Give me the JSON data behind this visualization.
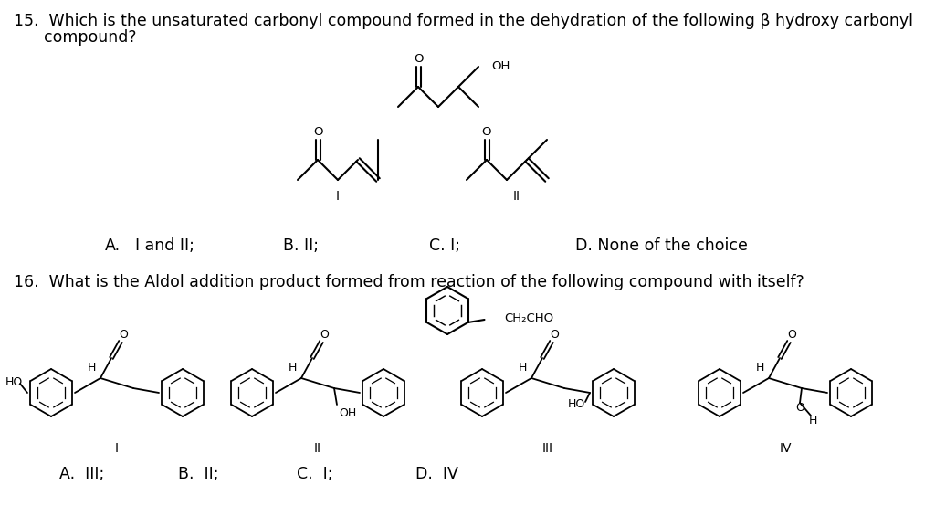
{
  "background_color": "#ffffff",
  "figsize": [
    10.24,
    5.54
  ],
  "dpi": 100,
  "q15_text_line1": "15.  Which is the unsaturated carbonyl compound formed in the dehydration of the following β hydroxy carbonyl",
  "q15_text_line2": "      compound?",
  "q16_text": "16.  What is the Aldol addition product formed from reaction of the following compound with itself?",
  "font_size_main": 12.5,
  "font_size_chem": 9.5,
  "font_size_label": 10
}
